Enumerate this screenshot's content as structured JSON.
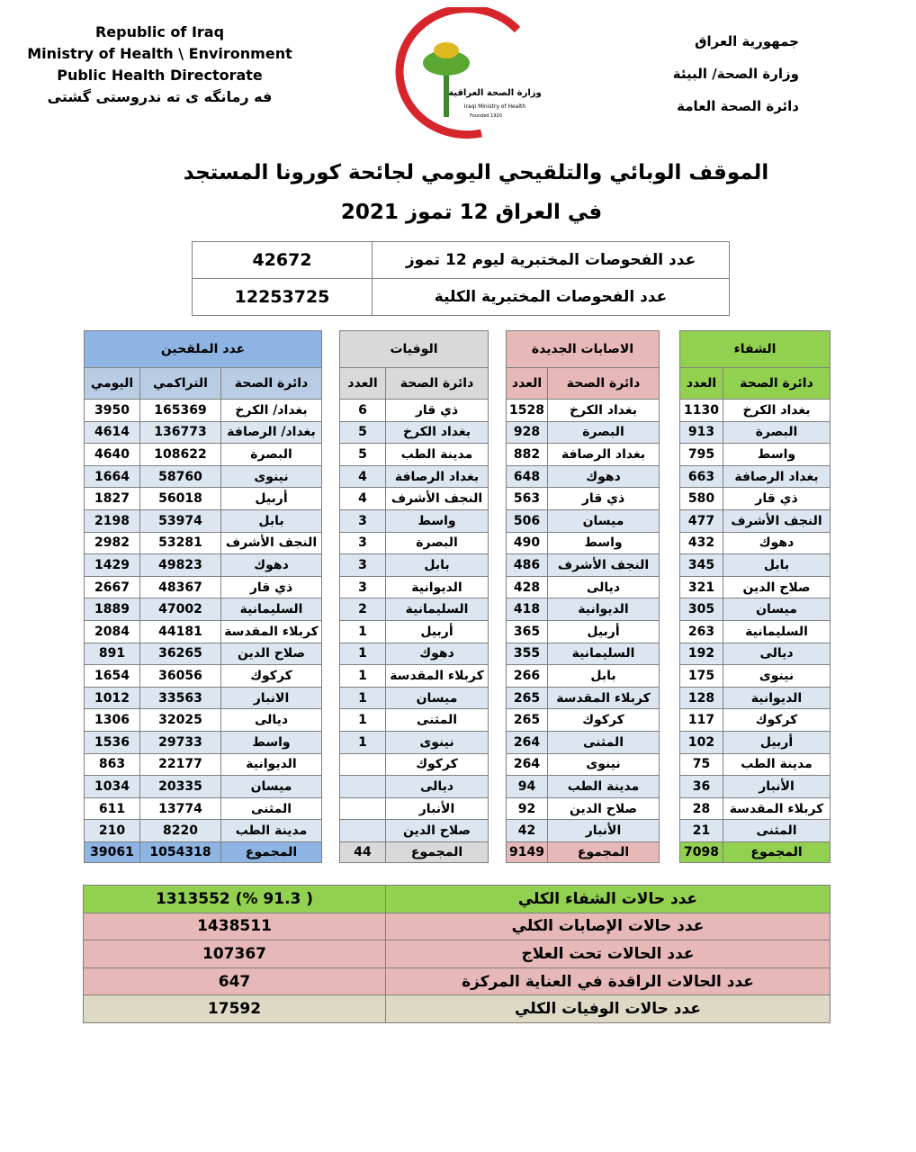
{
  "header": {
    "en": [
      "Republic of Iraq",
      "Ministry of Health \\ Environment",
      "Public Health Directorate",
      "فه رمانگه ى ته ندروستى گشتى"
    ],
    "ar": [
      "جمهورية العراق",
      "وزارة الصحة/ البيئة",
      "دائرة الصحة العامة"
    ],
    "logo": {
      "ar": "وزارة الصحة العراقية",
      "en": "Iraqi Ministry of Health",
      "founded": "Founded 1920"
    }
  },
  "title": [
    "الموقف الوبائي والتلقيحي اليومي لجائحة كورونا المستجد",
    "في العراق 12  تموز 2021"
  ],
  "tests": {
    "rows": [
      [
        "عدد الفحوصات المختبرية  ليوم 12 تموز",
        42672
      ],
      [
        "عدد الفحوصات المختبرية الكلية",
        12253725
      ]
    ]
  },
  "tables": [
    {
      "title": "الشفاء",
      "columns": [
        "دائرة الصحة",
        "العدد"
      ],
      "rows": [
        [
          "بغداد الكرخ",
          1130
        ],
        [
          "البصرة",
          913
        ],
        [
          "واسط",
          795
        ],
        [
          "بغداد الرصافة",
          663
        ],
        [
          "ذي قار",
          580
        ],
        [
          "النجف الأشرف",
          477
        ],
        [
          "دهوك",
          432
        ],
        [
          "بابل",
          345
        ],
        [
          "صلاح الدين",
          321
        ],
        [
          "ميسان",
          305
        ],
        [
          "السليمانية",
          263
        ],
        [
          "ديالى",
          192
        ],
        [
          "نينوى",
          175
        ],
        [
          "الديوانية",
          128
        ],
        [
          "كركوك",
          117
        ],
        [
          "أربيل",
          102
        ],
        [
          "مدينة الطب",
          75
        ],
        [
          "الأنبار",
          36
        ],
        [
          "كربلاء المقدسة",
          28
        ],
        [
          "المثنى",
          21
        ]
      ],
      "total": [
        "المجموع",
        7098
      ]
    },
    {
      "title": "الاصابات الجديدة",
      "columns": [
        "دائرة الصحة",
        "العدد"
      ],
      "rows": [
        [
          "بغداد الكرخ",
          1528
        ],
        [
          "البصرة",
          928
        ],
        [
          "بغداد الرصافة",
          882
        ],
        [
          "دهوك",
          648
        ],
        [
          "ذي قار",
          563
        ],
        [
          "ميسان",
          506
        ],
        [
          "واسط",
          490
        ],
        [
          "النجف الأشرف",
          486
        ],
        [
          "ديالى",
          428
        ],
        [
          "الديوانية",
          418
        ],
        [
          "أربيل",
          365
        ],
        [
          "السليمانية",
          355
        ],
        [
          "بابل",
          266
        ],
        [
          "كربلاء المقدسة",
          265
        ],
        [
          "كركوك",
          265
        ],
        [
          "المثنى",
          264
        ],
        [
          "نينوى",
          264
        ],
        [
          "مدينة الطب",
          94
        ],
        [
          "صلاح الدين",
          92
        ],
        [
          "الأنبار",
          42
        ]
      ],
      "total": [
        "المجموع",
        9149
      ]
    },
    {
      "title": "الوفيات",
      "columns": [
        "دائرة الصحة",
        "العدد"
      ],
      "rows": [
        [
          "ذي قار",
          6
        ],
        [
          "بغداد الكرخ",
          5
        ],
        [
          "مدينة الطب",
          5
        ],
        [
          "بغداد الرصافة",
          4
        ],
        [
          "النجف الأشرف",
          4
        ],
        [
          "واسط",
          3
        ],
        [
          "البصرة",
          3
        ],
        [
          "بابل",
          3
        ],
        [
          "الديوانية",
          3
        ],
        [
          "السليمانية",
          2
        ],
        [
          "أربيل",
          1
        ],
        [
          "دهوك",
          1
        ],
        [
          "كربلاء المقدسة",
          1
        ],
        [
          "ميسان",
          1
        ],
        [
          "المثنى",
          1
        ],
        [
          "نينوى",
          1
        ],
        [
          "كركوك",
          null
        ],
        [
          "ديالى",
          null
        ],
        [
          "الأنبار",
          null
        ],
        [
          "صلاح الدين",
          null
        ]
      ],
      "total": [
        "المجموع",
        44
      ]
    },
    {
      "title": "عدد الملقحين",
      "columns": [
        "دائرة الصحة",
        "التراكمي",
        "اليومي"
      ],
      "rows": [
        [
          "بغداد/ الكرخ",
          165369,
          3950
        ],
        [
          "بغداد/ الرصافة",
          136773,
          4614
        ],
        [
          "البصرة",
          108622,
          4640
        ],
        [
          "نينوى",
          58760,
          1664
        ],
        [
          "أربيل",
          56018,
          1827
        ],
        [
          "بابل",
          53974,
          2198
        ],
        [
          "النجف الأشرف",
          53281,
          2982
        ],
        [
          "دهوك",
          49823,
          1429
        ],
        [
          "ذي قار",
          48367,
          2667
        ],
        [
          "السليمانية",
          47002,
          1889
        ],
        [
          "كربلاء المقدسة",
          44181,
          2084
        ],
        [
          "صلاح الدين",
          36265,
          891
        ],
        [
          "كركوك",
          36056,
          1654
        ],
        [
          "الانبار",
          33563,
          1012
        ],
        [
          "ديالى",
          32025,
          1306
        ],
        [
          "واسط",
          29733,
          1536
        ],
        [
          "الديوانية",
          22177,
          863
        ],
        [
          "ميسان",
          20335,
          1034
        ],
        [
          "المثنى",
          13774,
          611
        ],
        [
          "مدينة الطب",
          8220,
          210
        ]
      ],
      "total": [
        "المجموع",
        1054318,
        39061
      ]
    }
  ],
  "summary": {
    "rows": [
      [
        "عدد حالات الشفاء الكلي",
        "( 91.3 %)  1313552"
      ],
      [
        "عدد حالات الإصابات الكلي",
        1438511
      ],
      [
        "عدد الحالات تحت العلاج",
        107367
      ],
      [
        "عدد الحالات الراقدة في العناية المركزة",
        647
      ],
      [
        "عدد حالات الوفيات الكلي",
        17592
      ]
    ]
  }
}
